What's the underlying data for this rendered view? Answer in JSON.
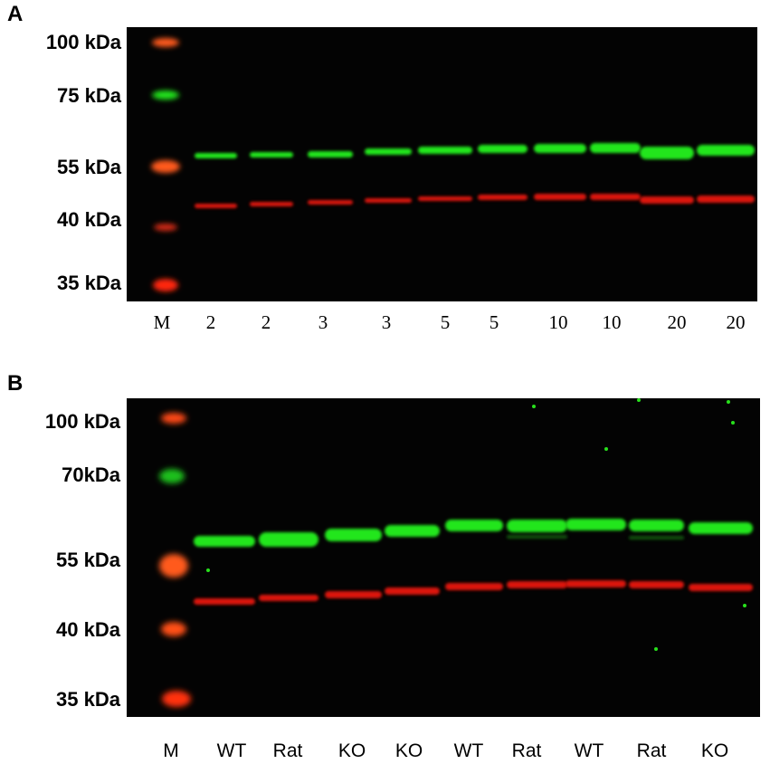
{
  "panelA": {
    "letter": "A",
    "markers": [
      "100 kDa",
      "75 kDa",
      "55 kDa",
      "40 kDa",
      "35 kDa"
    ],
    "lanes": [
      "M",
      "2",
      "2",
      "3",
      "3",
      "5",
      "5",
      "10",
      "10",
      "20",
      "20"
    ],
    "colors": {
      "green": "#22e61a",
      "red": "#e8140a",
      "ladder_orange": "#ff5a1e"
    }
  },
  "panelB": {
    "letter": "B",
    "markers": [
      "100 kDa",
      "70kDa",
      "55 kDa",
      "40 kDa",
      "35 kDa"
    ],
    "lanes": [
      "M",
      "WT",
      "Rat",
      "KO",
      "KO",
      "WT",
      "Rat",
      "WT",
      "Rat",
      "KO"
    ],
    "colors": {
      "green": "#22e61a",
      "red": "#e8140a",
      "ladder_orange": "#ff5a1e"
    }
  }
}
